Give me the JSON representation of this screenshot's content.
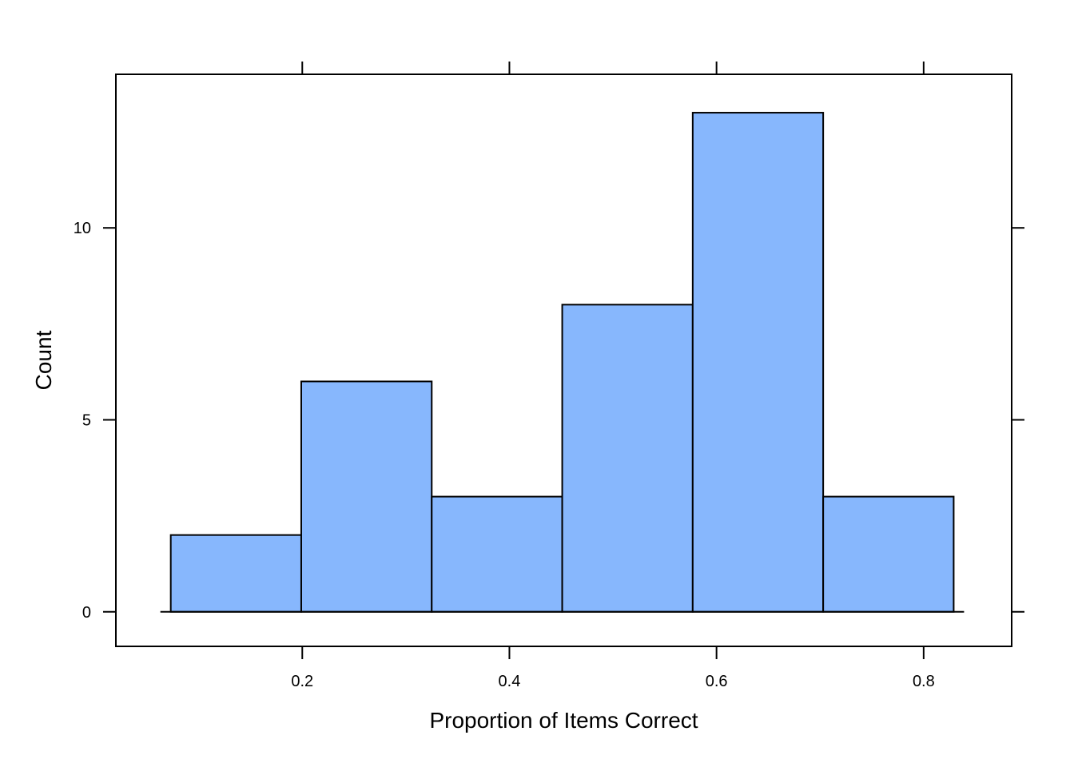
{
  "chart_data": {
    "type": "bar",
    "subtype": "histogram",
    "bins": [
      {
        "start": 0.073,
        "end": 0.199,
        "count": 2
      },
      {
        "start": 0.199,
        "end": 0.325,
        "count": 6
      },
      {
        "start": 0.325,
        "end": 0.451,
        "count": 3
      },
      {
        "start": 0.451,
        "end": 0.577,
        "count": 8
      },
      {
        "start": 0.577,
        "end": 0.703,
        "count": 13
      },
      {
        "start": 0.703,
        "end": 0.829,
        "count": 3
      }
    ],
    "xlabel": "Proportion of Items Correct",
    "ylabel": "Count",
    "xlim": [
      0.02,
      0.885
    ],
    "ylim": [
      -0.9,
      14.0
    ],
    "x_ticks": [
      {
        "value": 0.2,
        "label": "0.2"
      },
      {
        "value": 0.4,
        "label": "0.4"
      },
      {
        "value": 0.6,
        "label": "0.6"
      },
      {
        "value": 0.8,
        "label": "0.8"
      }
    ],
    "y_ticks": [
      {
        "value": 0,
        "label": "0"
      },
      {
        "value": 5,
        "label": "5"
      },
      {
        "value": 10,
        "label": "10"
      }
    ],
    "bar_color": "#87b7fd",
    "grid": false,
    "legend": "none"
  }
}
